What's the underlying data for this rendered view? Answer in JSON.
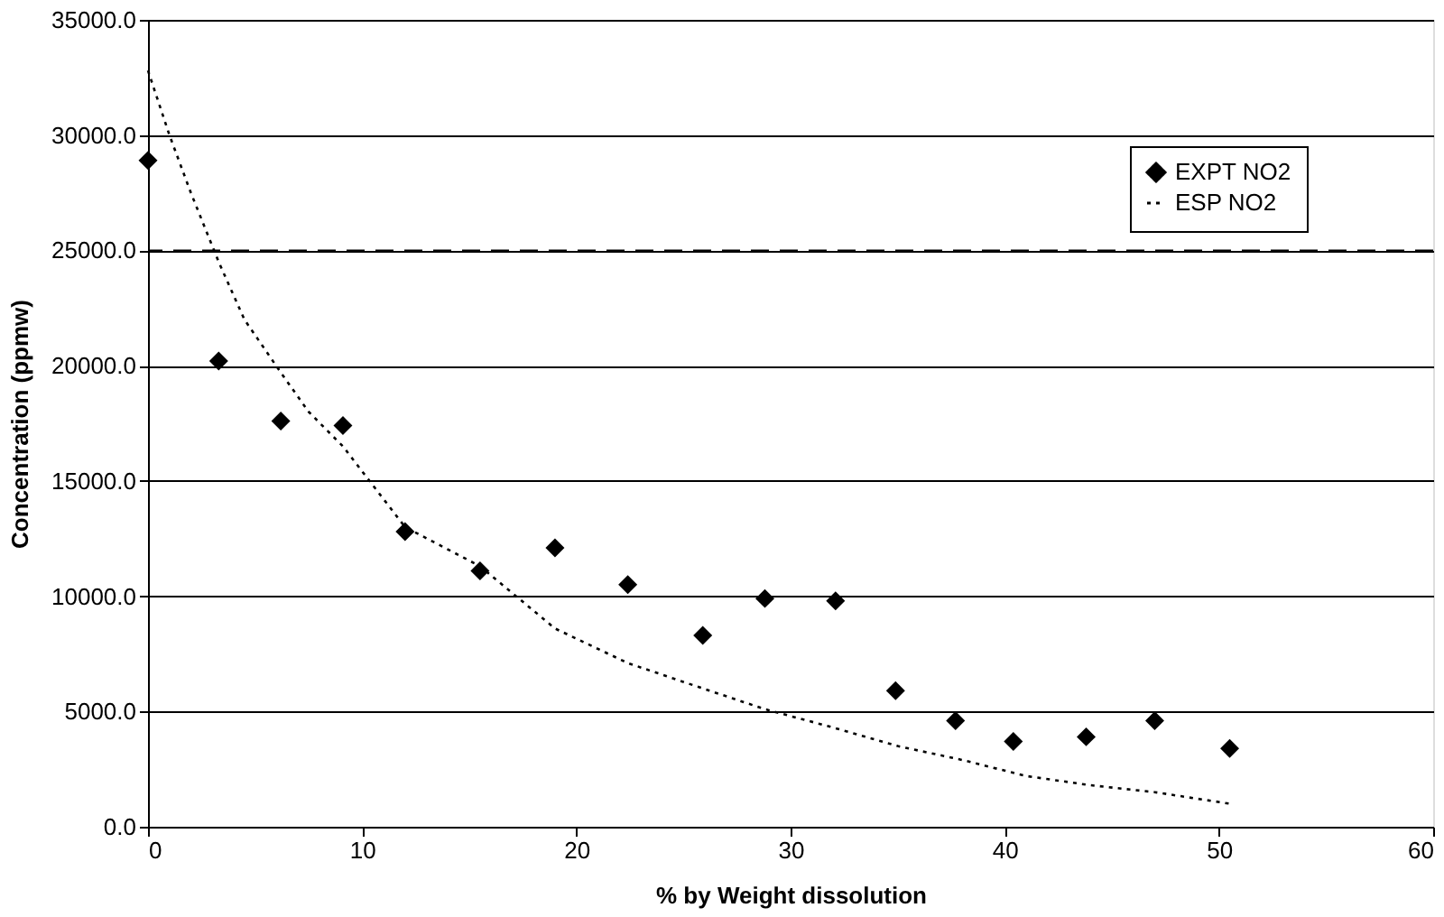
{
  "chart_data": {
    "type": "scatter",
    "xlabel": "% by Weight dissolution",
    "ylabel": "Concentration (ppmw)",
    "series": [
      {
        "name": "EXPT NO2",
        "color": "#000000",
        "marker": "diamond",
        "x": [
          0,
          3.3,
          6.2,
          9.1,
          12,
          15.5,
          19,
          22.4,
          25.9,
          28.8,
          32.1,
          34.9,
          37.7,
          40.4,
          43.8,
          47,
          50.5
        ],
        "values": [
          28900,
          20200,
          17600,
          17400,
          12800,
          11100,
          12100,
          10500,
          8300,
          9900,
          9800,
          5900,
          4600,
          3700,
          3900,
          4600,
          3400
        ]
      },
      {
        "name": "ESP NO2",
        "type": "line",
        "color": "#000000",
        "marker": "none",
        "line_style": "dotted",
        "x": [
          0,
          1,
          2,
          3.3,
          4.5,
          6.2,
          7.5,
          9.1,
          12,
          15.5,
          19,
          22.4,
          25.9,
          28.8,
          32,
          35,
          38,
          41,
          44,
          47,
          50.5
        ],
        "values": [
          32800,
          30000,
          27500,
          24500,
          22000,
          19700,
          18000,
          16500,
          13000,
          11300,
          8600,
          7100,
          6000,
          5100,
          4300,
          3500,
          2900,
          2200,
          1800,
          1500,
          1000
        ]
      }
    ],
    "xlim": [
      0,
      60
    ],
    "xticks": [
      0,
      10,
      20,
      30,
      40,
      50,
      60
    ],
    "ylim": [
      0,
      35000
    ],
    "yticks": [
      {
        "value": 0,
        "label": "0.0"
      },
      {
        "value": 5000,
        "label": "5000.0"
      },
      {
        "value": 10000,
        "label": "10000.0"
      },
      {
        "value": 15000,
        "label": "15000.0"
      },
      {
        "value": 20000,
        "label": "20000.0"
      },
      {
        "value": 25000,
        "label": "25000.0"
      },
      {
        "value": 30000,
        "label": "30000.0"
      },
      {
        "value": 35000,
        "label": "35000.0"
      }
    ],
    "ref_lines": [
      {
        "axis": "y",
        "value": 25000,
        "color": "#000000",
        "line_style": "dashed"
      }
    ],
    "grid": "y",
    "legend": "top right"
  }
}
